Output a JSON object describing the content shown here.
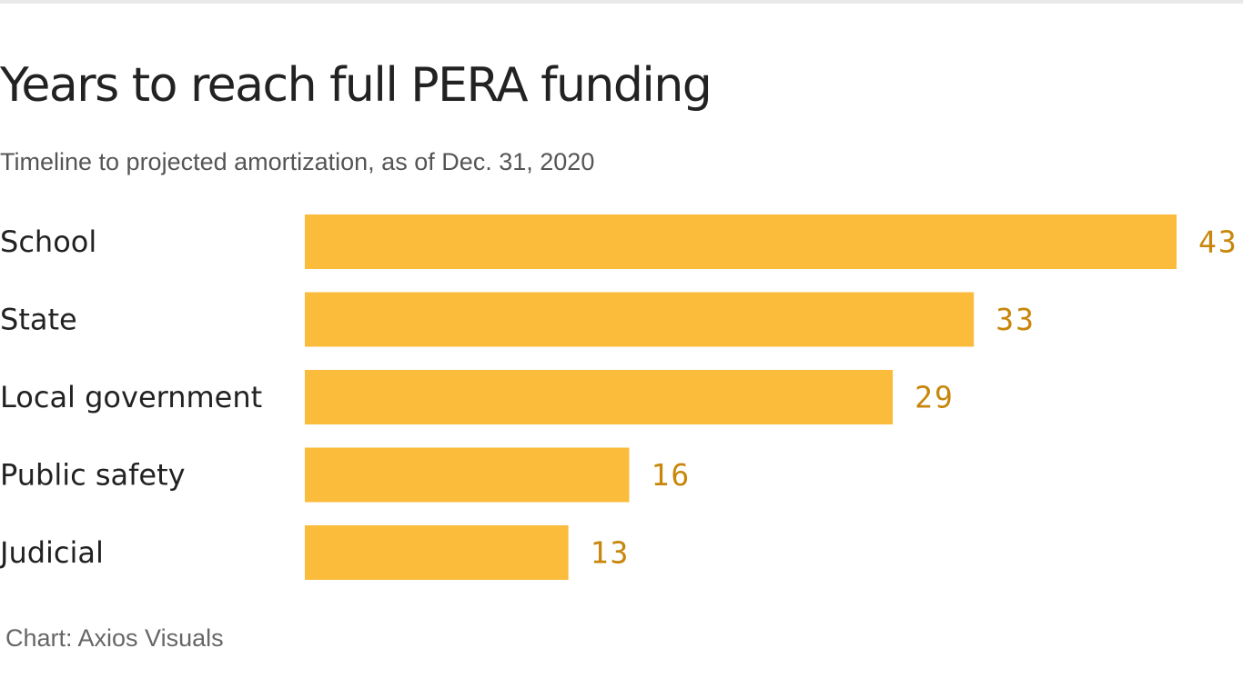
{
  "chart_data": {
    "type": "bar",
    "orientation": "horizontal",
    "title": "Years to reach full PERA funding",
    "subtitle": "Timeline to projected amortization, as of Dec. 31, 2020",
    "categories": [
      "School",
      "State",
      "Local government",
      "Public safety",
      "Judicial"
    ],
    "values": [
      43,
      33,
      29,
      16,
      13
    ],
    "xlim": [
      0,
      43
    ],
    "grid": false,
    "legend": "none",
    "bar_color": "#fbbb3b",
    "value_label_color": "#c8860a",
    "source": "Chart: Axios Visuals"
  }
}
